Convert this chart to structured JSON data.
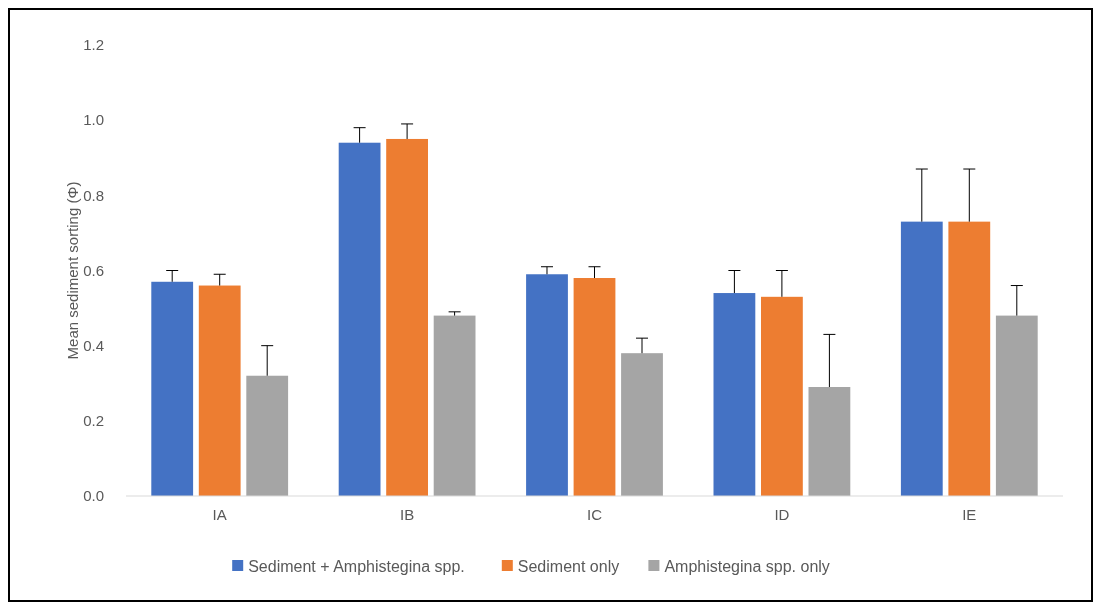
{
  "chart_data": {
    "type": "bar",
    "ylabel": "Mean sediment sorting (Φ)",
    "categories": [
      "IA",
      "IB",
      "IC",
      "ID",
      "IE"
    ],
    "ylim": [
      0,
      1.2
    ],
    "yticks": [
      "0.0",
      0.2,
      0.4,
      0.6,
      0.8,
      "1.0",
      1.2
    ],
    "legend": "bottom",
    "grid": false,
    "series": [
      {
        "name": "Sediment + Amphistegina spp.",
        "color": "#4472c4",
        "values": [
          0.57,
          0.94,
          0.59,
          0.54,
          0.73
        ],
        "errors": [
          [
            0.57,
            0.6
          ],
          [
            0.94,
            0.98
          ],
          [
            0.59,
            0.61
          ],
          [
            0.54,
            0.6
          ],
          [
            0.73,
            0.87
          ]
        ]
      },
      {
        "name": "Sediment only",
        "color": "#ed7d31",
        "values": [
          0.56,
          0.95,
          0.58,
          0.53,
          0.73
        ],
        "errors": [
          [
            0.56,
            0.59
          ],
          [
            0.95,
            0.99
          ],
          [
            0.58,
            0.61
          ],
          [
            0.53,
            0.6
          ],
          [
            0.73,
            0.87
          ]
        ]
      },
      {
        "name": "Amphistegina spp. only",
        "color": "#a5a5a5",
        "values": [
          0.32,
          0.48,
          0.38,
          0.29,
          0.48
        ],
        "errors": [
          [
            0.32,
            0.4
          ],
          [
            0.48,
            0.49
          ],
          [
            0.38,
            0.42
          ],
          [
            0.29,
            0.43
          ],
          [
            0.48,
            0.56
          ]
        ]
      }
    ]
  }
}
